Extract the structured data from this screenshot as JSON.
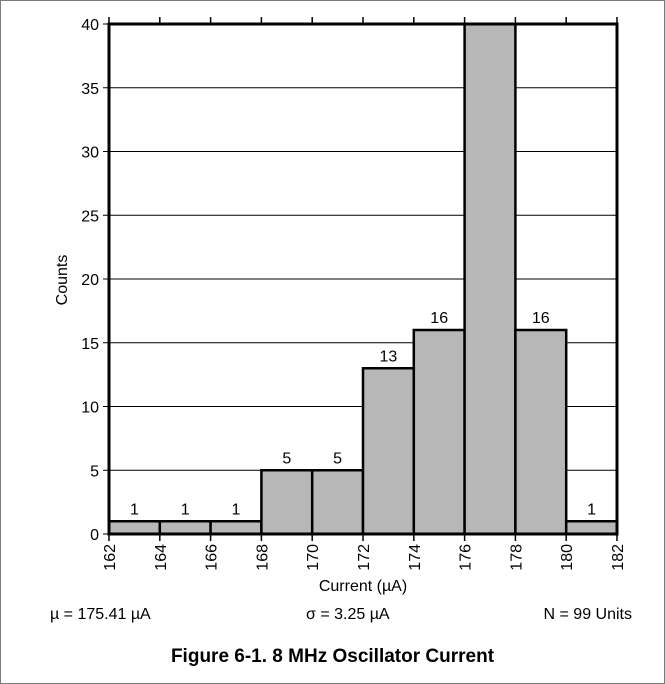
{
  "chart_data": {
    "type": "bar",
    "histogram": true,
    "bin_edges": [
      162,
      164,
      166,
      168,
      170,
      172,
      174,
      176,
      178,
      180,
      182
    ],
    "values": [
      1,
      1,
      1,
      5,
      5,
      13,
      16,
      40,
      16,
      1
    ],
    "data_labels": [
      "1",
      "1",
      "1",
      "5",
      "5",
      "13",
      "16",
      "",
      "16",
      "1"
    ],
    "xlabel": "Current (µA)",
    "ylabel": "Counts",
    "xlim": [
      162,
      182
    ],
    "ylim": [
      0,
      40
    ],
    "x_ticks": [
      "162",
      "164",
      "166",
      "168",
      "170",
      "172",
      "174",
      "176",
      "178",
      "180",
      "182"
    ],
    "y_ticks": [
      "0",
      "5",
      "10",
      "15",
      "20",
      "25",
      "30",
      "35",
      "40"
    ],
    "grid": "horizontal",
    "bar_color": "#b7b7b7"
  },
  "stats": {
    "mu": "µ = 175.41 µA",
    "sigma": "σ = 3.25 µA",
    "n": "N = 99 Units"
  },
  "caption": "Figure 6-1. 8 MHz Oscillator Current"
}
